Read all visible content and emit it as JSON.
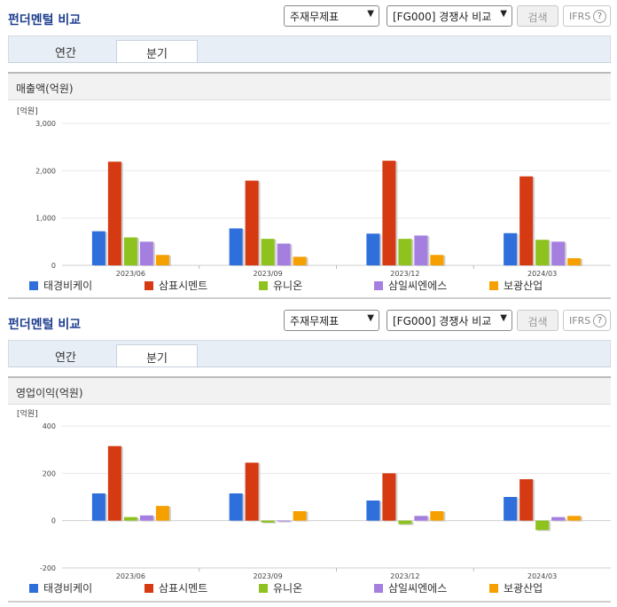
{
  "panels": [
    {
      "title": "펀더멘털 비교",
      "select1": "주재무제표",
      "select2": "[FG000] 경쟁사 비교",
      "search_label": "검색",
      "ifrs_label": "IFRS",
      "ifrs_help": "?",
      "tabs": [
        {
          "label": "연간"
        },
        {
          "label": "분기"
        }
      ],
      "active_tab": 1,
      "section_title": "매출액(억원)",
      "unit": "[억원]"
    },
    {
      "title": "펀더멘털 비교",
      "select1": "주재무제표",
      "select2": "[FG000] 경쟁사 비교",
      "search_label": "검색",
      "ifrs_label": "IFRS",
      "ifrs_help": "?",
      "tabs": [
        {
          "label": "연간"
        },
        {
          "label": "분기"
        }
      ],
      "active_tab": 1,
      "section_title": "영업이익(억원)",
      "unit": "[억원]"
    }
  ],
  "chart_data": [
    {
      "type": "bar",
      "categories": [
        "2023/06",
        "2023/09",
        "2023/12",
        "2024/03"
      ],
      "ylim": [
        0,
        3000
      ],
      "yticks": [
        0,
        1000,
        2000,
        3000
      ],
      "ytick_labels": [
        "0",
        "1,000",
        "2,000",
        "3,000"
      ],
      "series": [
        {
          "name": "태경비케이",
          "color": "#2f6fdc",
          "values": [
            720,
            780,
            670,
            680
          ]
        },
        {
          "name": "삼표시멘트",
          "color": "#d63a12",
          "values": [
            2190,
            1790,
            2210,
            1880
          ]
        },
        {
          "name": "유니온",
          "color": "#8dc21f",
          "values": [
            590,
            560,
            560,
            540
          ]
        },
        {
          "name": "삼일씨엔에스",
          "color": "#a57fe0",
          "values": [
            500,
            460,
            630,
            500
          ]
        },
        {
          "name": "보광산업",
          "color": "#f6a000",
          "values": [
            220,
            180,
            220,
            150
          ]
        }
      ],
      "grid": true,
      "legend_position": "bottom"
    },
    {
      "type": "bar",
      "categories": [
        "2023/06",
        "2023/09",
        "2023/12",
        "2024/03"
      ],
      "ylim": [
        -200,
        400
      ],
      "yticks": [
        -200,
        0,
        200,
        400
      ],
      "ytick_labels": [
        "-200",
        "0",
        "200",
        "400"
      ],
      "series": [
        {
          "name": "태경비케이",
          "color": "#2f6fdc",
          "values": [
            115,
            115,
            85,
            100
          ]
        },
        {
          "name": "삼표시멘트",
          "color": "#d63a12",
          "values": [
            315,
            245,
            200,
            175
          ]
        },
        {
          "name": "유니온",
          "color": "#8dc21f",
          "values": [
            15,
            -8,
            -15,
            -40
          ]
        },
        {
          "name": "삼일씨엔에스",
          "color": "#a57fe0",
          "values": [
            22,
            0,
            20,
            15
          ]
        },
        {
          "name": "보광산업",
          "color": "#f6a000",
          "values": [
            62,
            40,
            40,
            20
          ]
        }
      ],
      "grid": true,
      "legend_position": "bottom"
    }
  ]
}
